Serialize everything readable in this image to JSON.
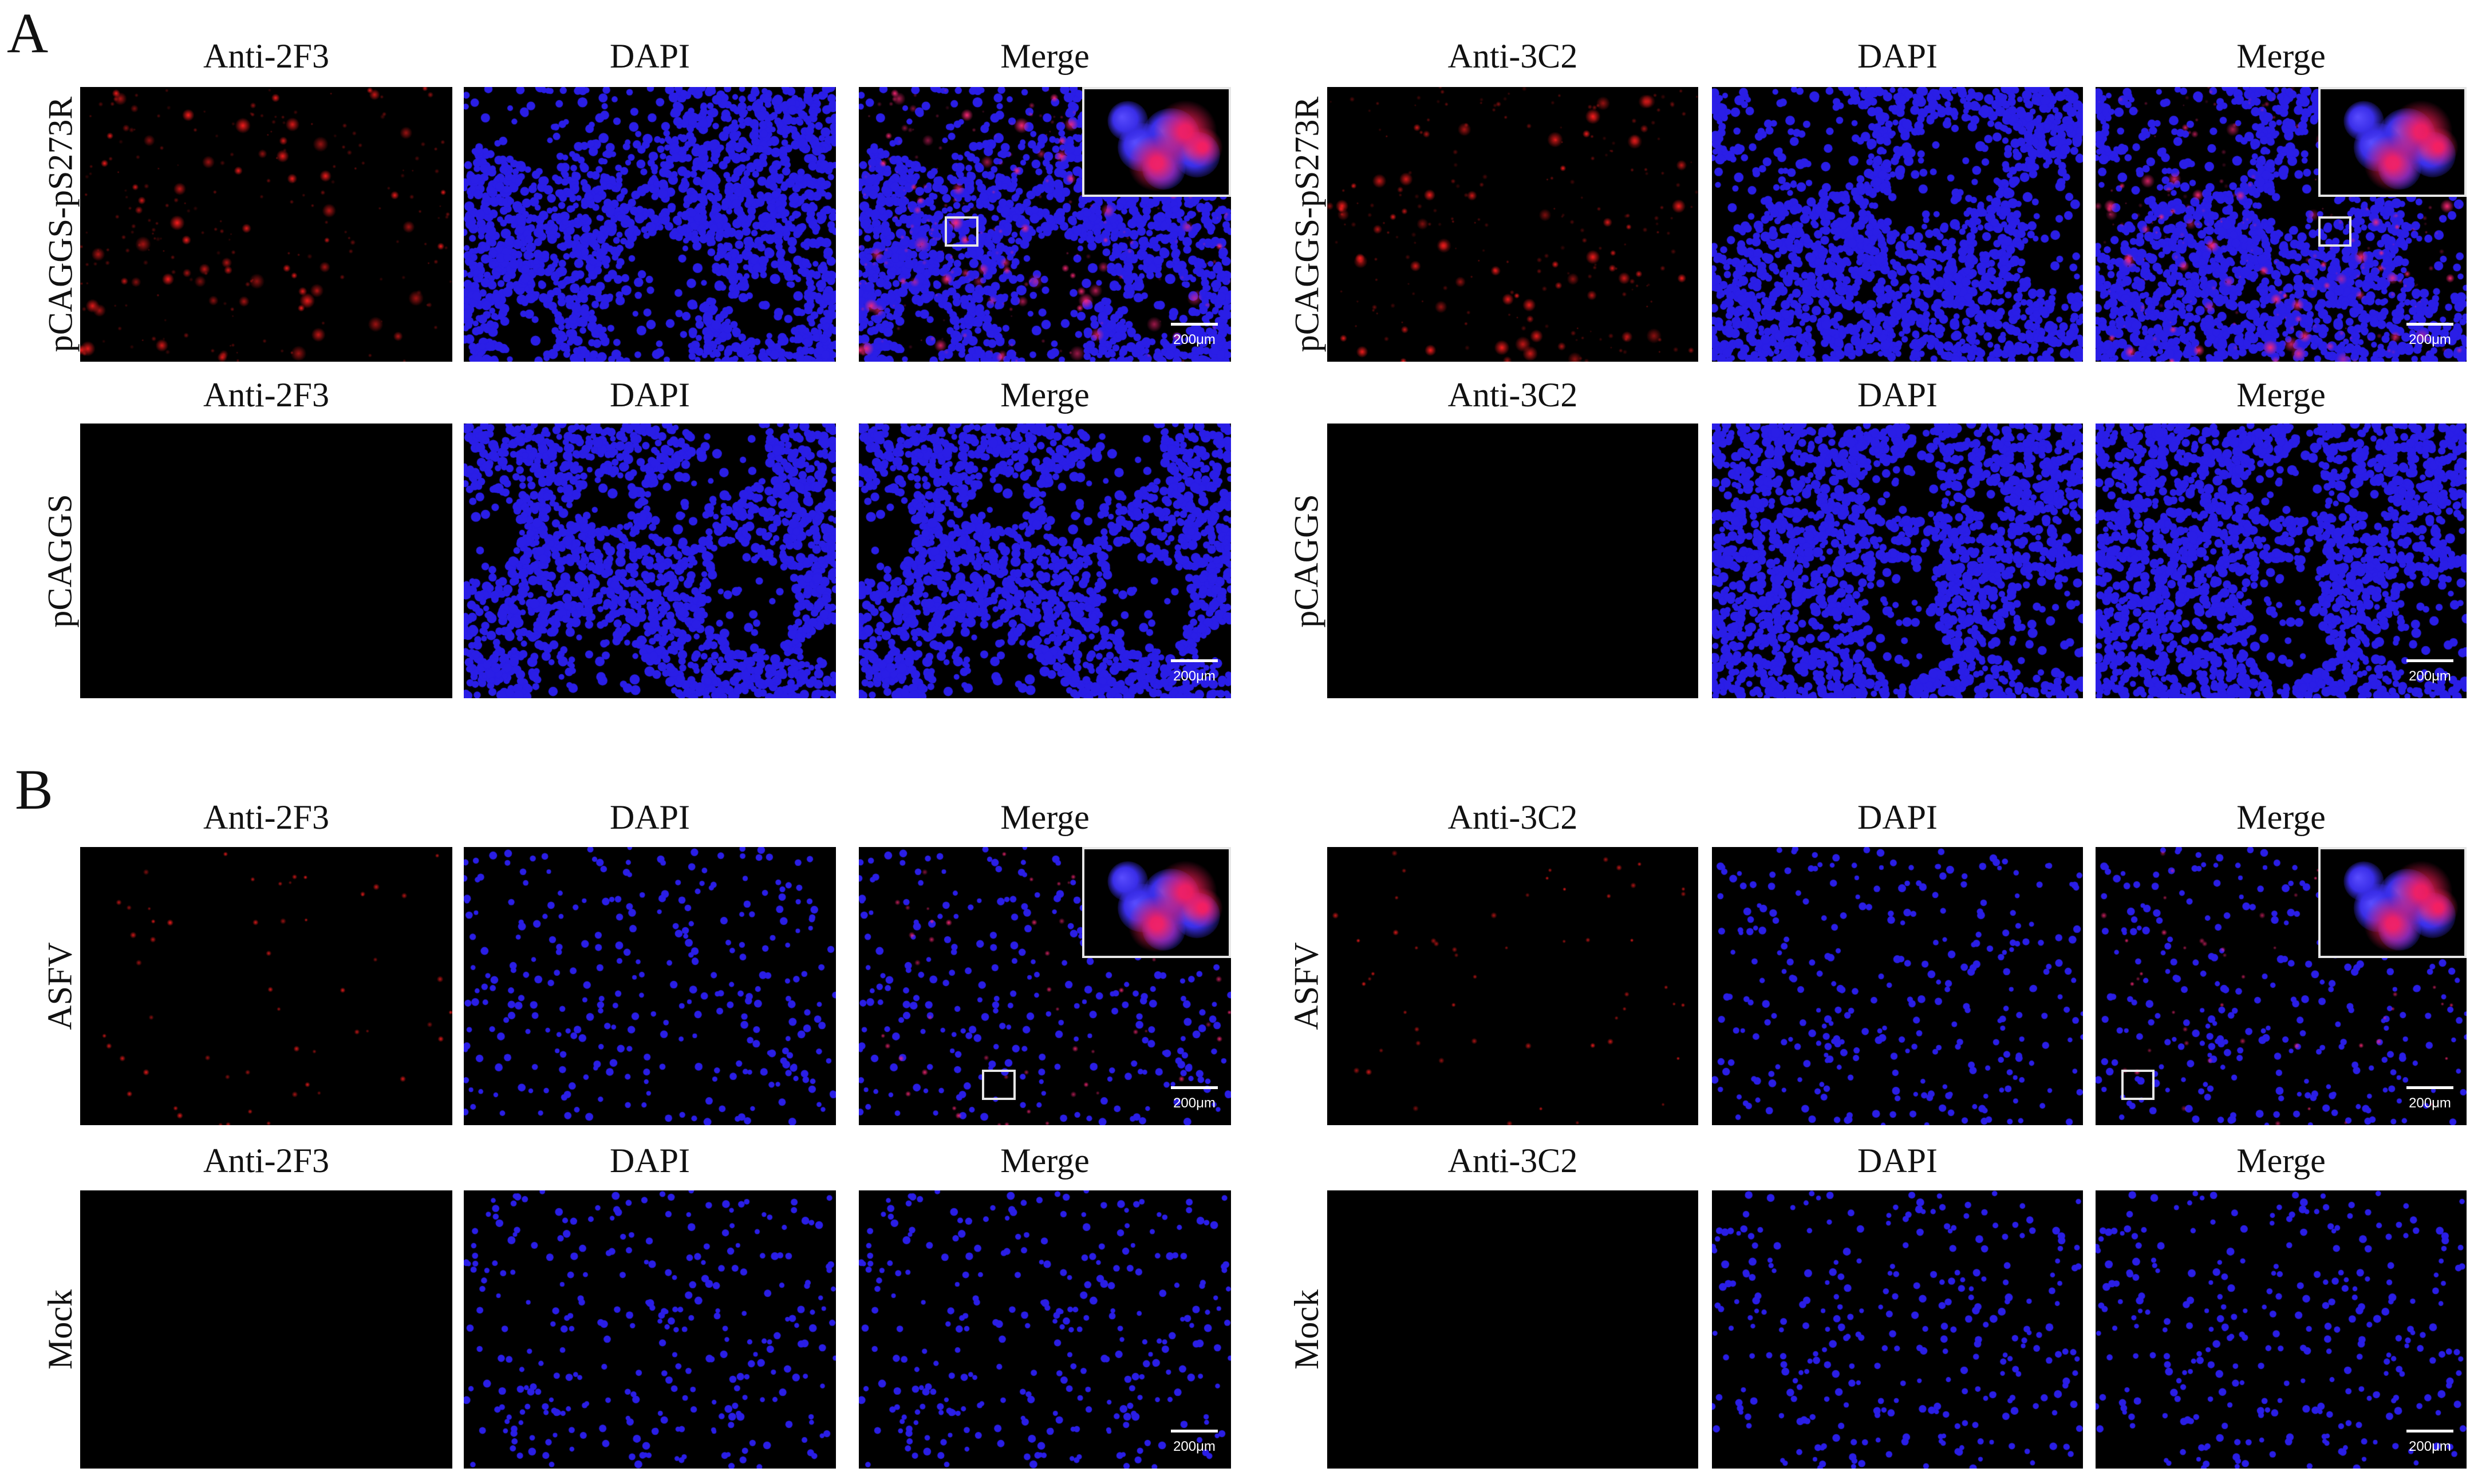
{
  "figure": {
    "sections": [
      {
        "letter": "A",
        "groups": [
          {
            "rows": [
              {
                "label": "pCAGGS-pS273R",
                "titles": [
                  "Anti-2F3",
                  "DAPI",
                  "Merge"
                ],
                "red": "dense",
                "blue": "dense",
                "inset": true,
                "scalebar": "200μm"
              },
              {
                "label": "pCAGGS",
                "titles": [
                  "Anti-2F3",
                  "DAPI",
                  "Merge"
                ],
                "red": "none",
                "blue": "dense",
                "inset": false,
                "scalebar": "200μm"
              }
            ]
          },
          {
            "rows": [
              {
                "label": "pCAGGS-pS273R",
                "titles": [
                  "Anti-3C2",
                  "DAPI",
                  "Merge"
                ],
                "red": "dense",
                "blue": "dense",
                "inset": true,
                "scalebar": "200μm"
              },
              {
                "label": "pCAGGS",
                "titles": [
                  "Anti-3C2",
                  "DAPI",
                  "Merge"
                ],
                "red": "none",
                "blue": "dense",
                "inset": false,
                "scalebar": "200μm"
              }
            ]
          }
        ]
      },
      {
        "letter": "B",
        "groups": [
          {
            "rows": [
              {
                "label": "ASFV",
                "titles": [
                  "Anti-2F3",
                  "DAPI",
                  "Merge"
                ],
                "red": "sparse",
                "blue": "sparse",
                "inset": true,
                "scalebar": "200μm"
              },
              {
                "label": "Mock",
                "titles": [
                  "Anti-2F3",
                  "DAPI",
                  "Merge"
                ],
                "red": "none",
                "blue": "sparse",
                "inset": false,
                "scalebar": "200μm"
              }
            ]
          },
          {
            "rows": [
              {
                "label": "ASFV",
                "titles": [
                  "Anti-3C2",
                  "DAPI",
                  "Merge"
                ],
                "red": "sparse",
                "blue": "sparse",
                "inset": true,
                "scalebar": "200μm"
              },
              {
                "label": "Mock",
                "titles": [
                  "Anti-3C2",
                  "DAPI",
                  "Merge"
                ],
                "red": "none",
                "blue": "sparse",
                "inset": false,
                "scalebar": "200μm"
              }
            ]
          }
        ]
      }
    ],
    "colors": {
      "red_stain": "#ff2020",
      "dapi_blue": "#2a1ee6",
      "background": "#000000",
      "inset_border": "#e6e6e6"
    }
  }
}
